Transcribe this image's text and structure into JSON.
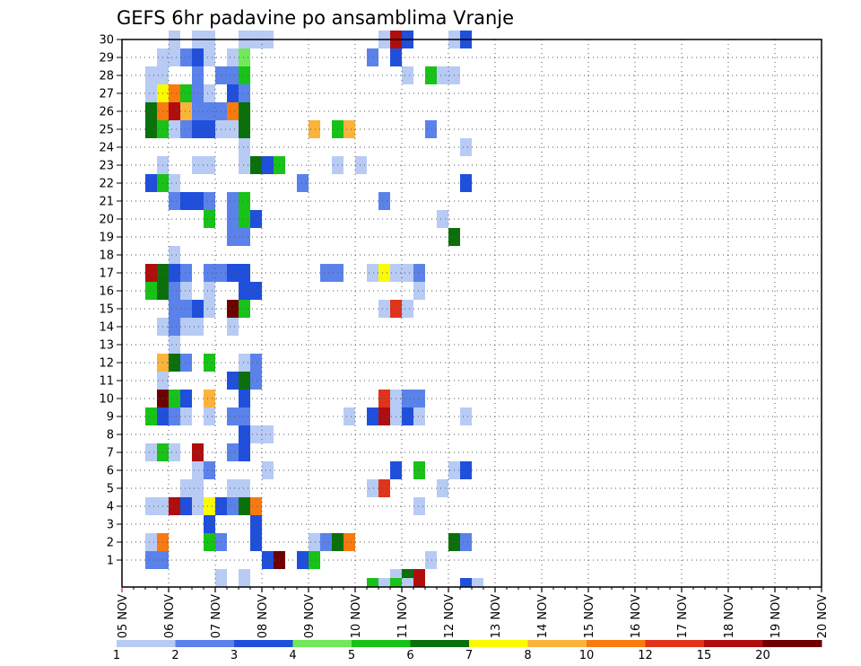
{
  "title": "GEFS 6hr padavine po ansamblima Vranje",
  "chart_data": {
    "type": "heatmap",
    "title": "GEFS 6hr padavine po ansamblima Vranje",
    "xlabel": "",
    "ylabel": "",
    "y_ticks": [
      "1",
      "2",
      "3",
      "4",
      "5",
      "6",
      "7",
      "8",
      "9",
      "10",
      "11",
      "12",
      "13",
      "14",
      "15",
      "16",
      "17",
      "18",
      "19",
      "20",
      "21",
      "22",
      "23",
      "24",
      "25",
      "26",
      "27",
      "28",
      "29",
      "30"
    ],
    "x_ticks": [
      "05 NOV",
      "06 NOV",
      "07 NOV",
      "08 NOV",
      "09 NOV",
      "10 NOV",
      "11 NOV",
      "12 NOV",
      "13 NOV",
      "14 NOV",
      "15 NOV",
      "16 NOV",
      "17 NOV",
      "18 NOV",
      "19 NOV",
      "20 NOV"
    ],
    "steps_per_day": 4,
    "total_steps": 60,
    "members": 30,
    "levels": [
      1,
      2,
      3,
      4,
      5,
      6,
      7,
      8,
      10,
      12,
      15,
      20
    ],
    "level_labels": [
      "1",
      "2",
      "3",
      "4",
      "5",
      "6",
      "7",
      "8",
      "10",
      "12",
      "15",
      "20"
    ],
    "colors": [
      "#b8cbf5",
      "#5a82ea",
      "#1f4fdb",
      "#72e85a",
      "#19c219",
      "#0b700b",
      "#fafa00",
      "#fbb33c",
      "#f97a0f",
      "#e0341a",
      "#b00d0d",
      "#6e0000"
    ],
    "rows": [
      {
        "member": 30,
        "cells": [
          [
            5,
            1
          ],
          [
            7,
            1
          ],
          [
            8,
            1
          ],
          [
            11,
            1
          ],
          [
            12,
            1
          ],
          [
            13,
            1
          ],
          [
            23,
            1
          ],
          [
            24,
            11
          ],
          [
            25,
            1
          ],
          [
            25,
            3
          ],
          [
            29,
            1
          ],
          [
            30,
            1
          ],
          [
            30,
            3
          ]
        ]
      },
      {
        "member": 29,
        "cells": [
          [
            4,
            1
          ],
          [
            5,
            1
          ],
          [
            6,
            2
          ],
          [
            7,
            3
          ],
          [
            8,
            1
          ],
          [
            10,
            1
          ],
          [
            11,
            3
          ],
          [
            11,
            4
          ],
          [
            22,
            2
          ],
          [
            24,
            3
          ]
        ]
      },
      {
        "member": 28,
        "cells": [
          [
            3,
            1
          ],
          [
            4,
            1
          ],
          [
            7,
            2
          ],
          [
            9,
            2
          ],
          [
            10,
            2
          ],
          [
            11,
            1
          ],
          [
            11,
            5
          ],
          [
            25,
            1
          ],
          [
            27,
            5
          ],
          [
            28,
            1
          ],
          [
            29,
            1
          ]
        ]
      },
      {
        "member": 27,
        "cells": [
          [
            3,
            1
          ],
          [
            4,
            7
          ],
          [
            5,
            9
          ],
          [
            6,
            5
          ],
          [
            7,
            2
          ],
          [
            8,
            1
          ],
          [
            10,
            3
          ],
          [
            11,
            1
          ],
          [
            11,
            2
          ]
        ]
      },
      {
        "member": 26,
        "cells": [
          [
            3,
            6
          ],
          [
            4,
            9
          ],
          [
            5,
            11
          ],
          [
            6,
            8
          ],
          [
            7,
            2
          ],
          [
            8,
            2
          ],
          [
            9,
            2
          ],
          [
            10,
            1
          ],
          [
            10,
            9
          ],
          [
            11,
            6
          ]
        ]
      },
      {
        "member": 25,
        "cells": [
          [
            3,
            1
          ],
          [
            3,
            6
          ],
          [
            4,
            5
          ],
          [
            5,
            1
          ],
          [
            6,
            2
          ],
          [
            7,
            3
          ],
          [
            8,
            3
          ],
          [
            9,
            1
          ],
          [
            10,
            1
          ],
          [
            11,
            6
          ],
          [
            17,
            8
          ],
          [
            19,
            5
          ],
          [
            20,
            6
          ],
          [
            20,
            8
          ],
          [
            27,
            2
          ]
        ]
      },
      {
        "member": 24,
        "cells": [
          [
            11,
            1
          ],
          [
            30,
            1
          ]
        ]
      },
      {
        "member": 23,
        "cells": [
          [
            4,
            1
          ],
          [
            7,
            1
          ],
          [
            8,
            1
          ],
          [
            11,
            1
          ],
          [
            12,
            6
          ],
          [
            13,
            3
          ],
          [
            14,
            5
          ],
          [
            19,
            1
          ],
          [
            21,
            1
          ]
        ]
      },
      {
        "member": 22,
        "cells": [
          [
            3,
            3
          ],
          [
            4,
            5
          ],
          [
            5,
            1
          ],
          [
            16,
            1
          ],
          [
            16,
            2
          ],
          [
            30,
            3
          ]
        ]
      },
      {
        "member": 21,
        "cells": [
          [
            5,
            2
          ],
          [
            6,
            3
          ],
          [
            7,
            3
          ],
          [
            8,
            2
          ],
          [
            10,
            2
          ],
          [
            11,
            5
          ],
          [
            23,
            2
          ]
        ]
      },
      {
        "member": 20,
        "cells": [
          [
            8,
            5
          ],
          [
            10,
            2
          ],
          [
            11,
            5
          ],
          [
            12,
            8
          ],
          [
            12,
            3
          ],
          [
            28,
            1
          ]
        ]
      },
      {
        "member": 19,
        "cells": [
          [
            10,
            2
          ],
          [
            11,
            2
          ],
          [
            29,
            6
          ]
        ]
      },
      {
        "member": 18,
        "cells": [
          [
            5,
            1
          ]
        ]
      },
      {
        "member": 17,
        "cells": [
          [
            3,
            2
          ],
          [
            3,
            11
          ],
          [
            4,
            6
          ],
          [
            5,
            3
          ],
          [
            6,
            2
          ],
          [
            8,
            2
          ],
          [
            9,
            2
          ],
          [
            10,
            3
          ],
          [
            11,
            3
          ],
          [
            11,
            3
          ],
          [
            18,
            2
          ],
          [
            19,
            2
          ],
          [
            22,
            2
          ],
          [
            22,
            1
          ],
          [
            23,
            7
          ],
          [
            24,
            1
          ],
          [
            25,
            1
          ],
          [
            26,
            3
          ],
          [
            26,
            2
          ]
        ]
      },
      {
        "member": 16,
        "cells": [
          [
            3,
            5
          ],
          [
            4,
            5
          ],
          [
            4,
            6
          ],
          [
            5,
            2
          ],
          [
            6,
            1
          ],
          [
            8,
            1
          ],
          [
            11,
            3
          ],
          [
            12,
            5
          ],
          [
            12,
            3
          ],
          [
            26,
            1
          ]
        ]
      },
      {
        "member": 15,
        "cells": [
          [
            5,
            2
          ],
          [
            6,
            2
          ],
          [
            7,
            3
          ],
          [
            8,
            1
          ],
          [
            10,
            12
          ],
          [
            11,
            5
          ],
          [
            23,
            1
          ],
          [
            24,
            10
          ],
          [
            25,
            2
          ],
          [
            25,
            1
          ]
        ]
      },
      {
        "member": 14,
        "cells": [
          [
            4,
            1
          ],
          [
            5,
            2
          ],
          [
            6,
            1
          ],
          [
            7,
            2
          ],
          [
            7,
            1
          ],
          [
            10,
            1
          ]
        ]
      },
      {
        "member": 13,
        "cells": [
          [
            5,
            1
          ]
        ]
      },
      {
        "member": 12,
        "cells": [
          [
            4,
            2
          ],
          [
            4,
            8
          ],
          [
            5,
            6
          ],
          [
            6,
            2
          ],
          [
            8,
            5
          ],
          [
            11,
            3
          ],
          [
            11,
            1
          ],
          [
            12,
            9
          ],
          [
            12,
            2
          ]
        ]
      },
      {
        "member": 11,
        "cells": [
          [
            4,
            1
          ],
          [
            10,
            3
          ],
          [
            11,
            2
          ],
          [
            11,
            6
          ],
          [
            12,
            3
          ],
          [
            12,
            2
          ]
        ]
      },
      {
        "member": 10,
        "cells": [
          [
            4,
            12
          ],
          [
            5,
            12
          ],
          [
            5,
            5
          ],
          [
            6,
            3
          ],
          [
            8,
            8
          ],
          [
            11,
            3
          ],
          [
            23,
            5
          ],
          [
            23,
            10
          ],
          [
            24,
            1
          ],
          [
            25,
            2
          ],
          [
            26,
            2
          ]
        ]
      },
      {
        "member": 9,
        "cells": [
          [
            3,
            5
          ],
          [
            4,
            3
          ],
          [
            5,
            2
          ],
          [
            6,
            1
          ],
          [
            8,
            1
          ],
          [
            10,
            2
          ],
          [
            11,
            7
          ],
          [
            11,
            2
          ],
          [
            20,
            1
          ],
          [
            22,
            3
          ],
          [
            23,
            11
          ],
          [
            24,
            1
          ],
          [
            25,
            3
          ],
          [
            26,
            2
          ],
          [
            26,
            1
          ],
          [
            30,
            1
          ]
        ]
      },
      {
        "member": 8,
        "cells": [
          [
            11,
            3
          ],
          [
            12,
            1
          ],
          [
            13,
            1
          ]
        ]
      },
      {
        "member": 7,
        "cells": [
          [
            3,
            1
          ],
          [
            4,
            5
          ],
          [
            5,
            1
          ],
          [
            7,
            11
          ],
          [
            10,
            2
          ],
          [
            11,
            3
          ]
        ]
      },
      {
        "member": 6,
        "cells": [
          [
            7,
            1
          ],
          [
            8,
            2
          ],
          [
            13,
            1
          ],
          [
            24,
            3
          ],
          [
            26,
            5
          ],
          [
            29,
            1
          ],
          [
            30,
            3
          ]
        ]
      },
      {
        "member": 5,
        "cells": [
          [
            6,
            1
          ],
          [
            7,
            1
          ],
          [
            10,
            1
          ],
          [
            11,
            1
          ],
          [
            22,
            1
          ],
          [
            23,
            10
          ],
          [
            28,
            1
          ]
        ]
      },
      {
        "member": 4,
        "cells": [
          [
            3,
            1
          ],
          [
            4,
            1
          ],
          [
            5,
            11
          ],
          [
            6,
            3
          ],
          [
            7,
            1
          ],
          [
            8,
            1
          ],
          [
            8,
            7
          ],
          [
            9,
            3
          ],
          [
            10,
            2
          ],
          [
            11,
            6
          ],
          [
            11,
            6
          ],
          [
            12,
            9
          ],
          [
            26,
            1
          ]
        ]
      },
      {
        "member": 3,
        "cells": [
          [
            8,
            3
          ],
          [
            12,
            3
          ]
        ]
      },
      {
        "member": 2,
        "cells": [
          [
            3,
            1
          ],
          [
            4,
            9
          ],
          [
            8,
            5
          ],
          [
            9,
            2
          ],
          [
            12,
            3
          ],
          [
            17,
            1
          ],
          [
            18,
            2
          ],
          [
            19,
            6
          ],
          [
            20,
            9
          ],
          [
            29,
            6
          ],
          [
            30,
            2
          ],
          [
            30,
            2
          ]
        ]
      },
      {
        "member": 1,
        "cells": [
          [
            3,
            2
          ],
          [
            4,
            2
          ],
          [
            13,
            3
          ],
          [
            14,
            12
          ],
          [
            16,
            3
          ],
          [
            17,
            5
          ],
          [
            27,
            1
          ]
        ]
      },
      {
        "member": 0,
        "cells": [
          [
            9,
            1
          ],
          [
            11,
            1
          ],
          [
            24,
            1
          ],
          [
            25,
            6
          ],
          [
            26,
            11
          ]
        ]
      }
    ],
    "bottom_strip": [
      [
        22,
        5
      ],
      [
        23,
        1
      ],
      [
        24,
        5
      ],
      [
        25,
        1
      ],
      [
        30,
        3
      ],
      [
        31,
        1
      ]
    ]
  }
}
